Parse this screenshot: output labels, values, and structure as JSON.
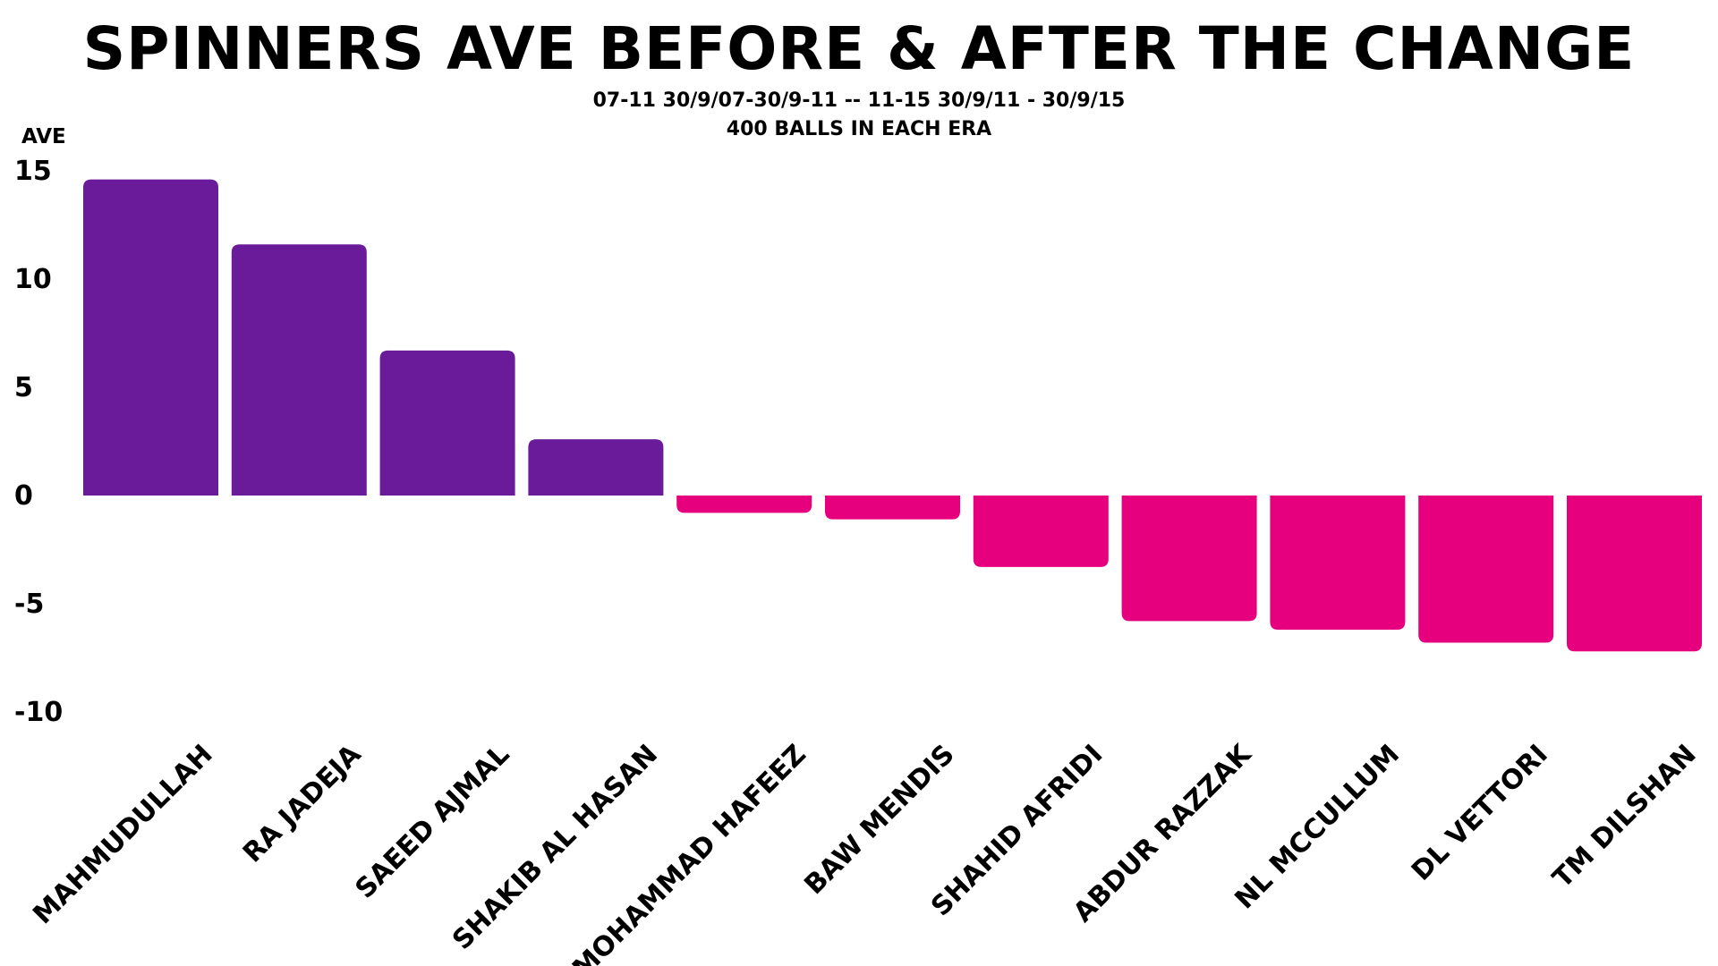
{
  "chart_data": {
    "type": "bar",
    "title": "SPINNERS AVE BEFORE & AFTER THE CHANGE",
    "subtitle_lines": [
      "07-11 30/9/07-30/9-11  -- 11-15 30/9/11 - 30/9/15",
      "400 BALLS IN EACH ERA"
    ],
    "ylabel": "AVE",
    "xlabel": "",
    "ylim": [
      -10,
      15
    ],
    "yticks": [
      "15",
      "10",
      "5",
      "0",
      "-5",
      "-10"
    ],
    "ytick_values": [
      15,
      10,
      5,
      0,
      -5,
      -10
    ],
    "grid": false,
    "legend": "none",
    "categories": [
      "MAHMUDULLAH",
      "RA JADEJA",
      "SAEED AJMAL",
      "SHAKIB AL HASAN",
      "MOHAMMAD HAFEEZ",
      "BAW MENDIS",
      "SHAHID AFRIDI",
      "ABDUR RAZZAK",
      "NL MCCULLUM",
      "DL VETTORI",
      "TM DILSHAN"
    ],
    "values": [
      14.6,
      11.6,
      6.7,
      2.6,
      -0.8,
      -1.1,
      -3.3,
      -5.8,
      -6.2,
      -6.8,
      -7.2
    ],
    "colors": {
      "positive": "#6a1b9a",
      "negative": "#e6007e"
    }
  }
}
